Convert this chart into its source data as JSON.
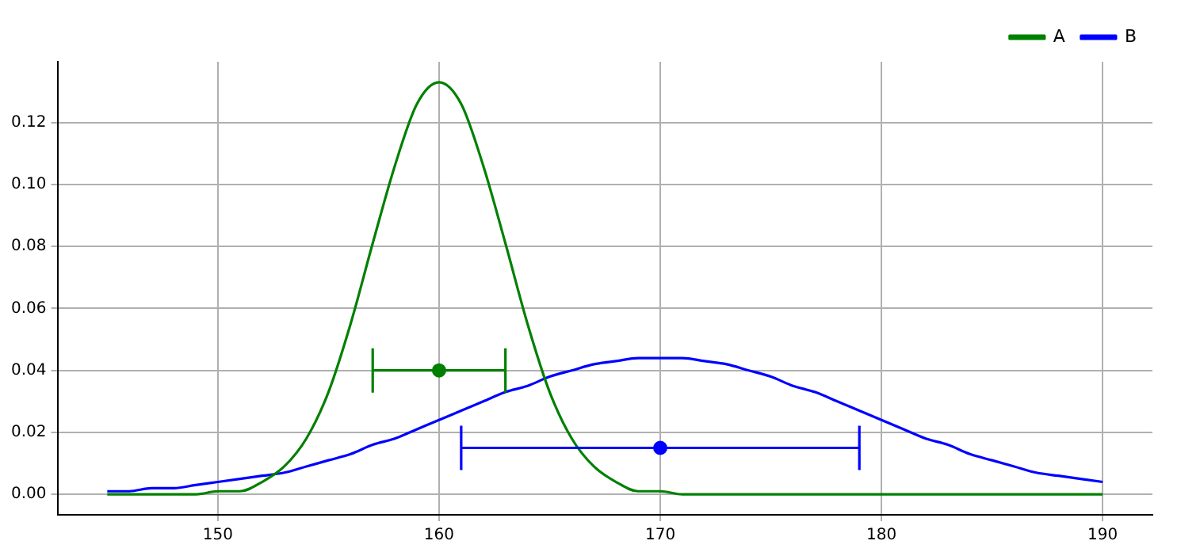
{
  "chart_data": {
    "type": "line",
    "x": [
      145,
      146,
      147,
      148,
      149,
      150,
      151,
      152,
      153,
      154,
      155,
      156,
      157,
      158,
      159,
      160,
      161,
      162,
      163,
      164,
      165,
      166,
      167,
      168,
      169,
      170,
      171,
      172,
      173,
      174,
      175,
      176,
      177,
      178,
      179,
      180,
      181,
      182,
      183,
      184,
      185,
      186,
      187,
      188,
      189,
      190
    ],
    "series": [
      {
        "name": "A",
        "color": "#008000",
        "values": [
          0,
          0,
          0,
          0,
          0,
          0.001,
          0.001,
          0.004,
          0.009,
          0.018,
          0.033,
          0.055,
          0.081,
          0.106,
          0.126,
          0.133,
          0.126,
          0.106,
          0.081,
          0.055,
          0.033,
          0.018,
          0.009,
          0.004,
          0.001,
          0.001,
          0,
          0,
          0,
          0,
          0,
          0,
          0,
          0,
          0,
          0,
          0,
          0,
          0,
          0,
          0,
          0,
          0,
          0,
          0,
          0
        ]
      },
      {
        "name": "B",
        "color": "#0000ff",
        "values": [
          0.001,
          0.001,
          0.002,
          0.002,
          0.003,
          0.004,
          0.005,
          0.006,
          0.007,
          0.009,
          0.011,
          0.013,
          0.016,
          0.018,
          0.021,
          0.024,
          0.027,
          0.03,
          0.033,
          0.035,
          0.038,
          0.04,
          0.042,
          0.043,
          0.044,
          0.044,
          0.044,
          0.043,
          0.042,
          0.04,
          0.038,
          0.035,
          0.033,
          0.03,
          0.027,
          0.024,
          0.021,
          0.018,
          0.016,
          0.013,
          0.011,
          0.009,
          0.007,
          0.006,
          0.005,
          0.004
        ]
      },
      {
        "type": "scatter",
        "color": "#008000",
        "x": [
          160
        ],
        "values": [
          0.04
        ],
        "xerrors": [
          3
        ],
        "marker": "circle"
      },
      {
        "type": "scatter",
        "color": "#0000ff",
        "x": [
          170
        ],
        "values": [
          0.015
        ],
        "xerrors": [
          9
        ],
        "marker": "circle"
      }
    ],
    "xlim": [
      142.75,
      192.25
    ],
    "xticks": [
      150,
      160,
      170,
      180,
      190
    ],
    "ylim": [
      -0.0066,
      0.1396
    ],
    "yticks": [
      {
        "value": 0,
        "label": "0.00"
      },
      {
        "value": 0.02,
        "label": "0.02"
      },
      {
        "value": 0.04,
        "label": "0.04"
      },
      {
        "value": 0.06,
        "label": "0.06"
      },
      {
        "value": 0.08,
        "label": "0.08"
      },
      {
        "value": 0.1,
        "label": "0.10"
      },
      {
        "value": 0.12,
        "label": "0.12"
      }
    ],
    "grid": true,
    "legend": "top right",
    "marker": "none",
    "line_style": "solid"
  }
}
